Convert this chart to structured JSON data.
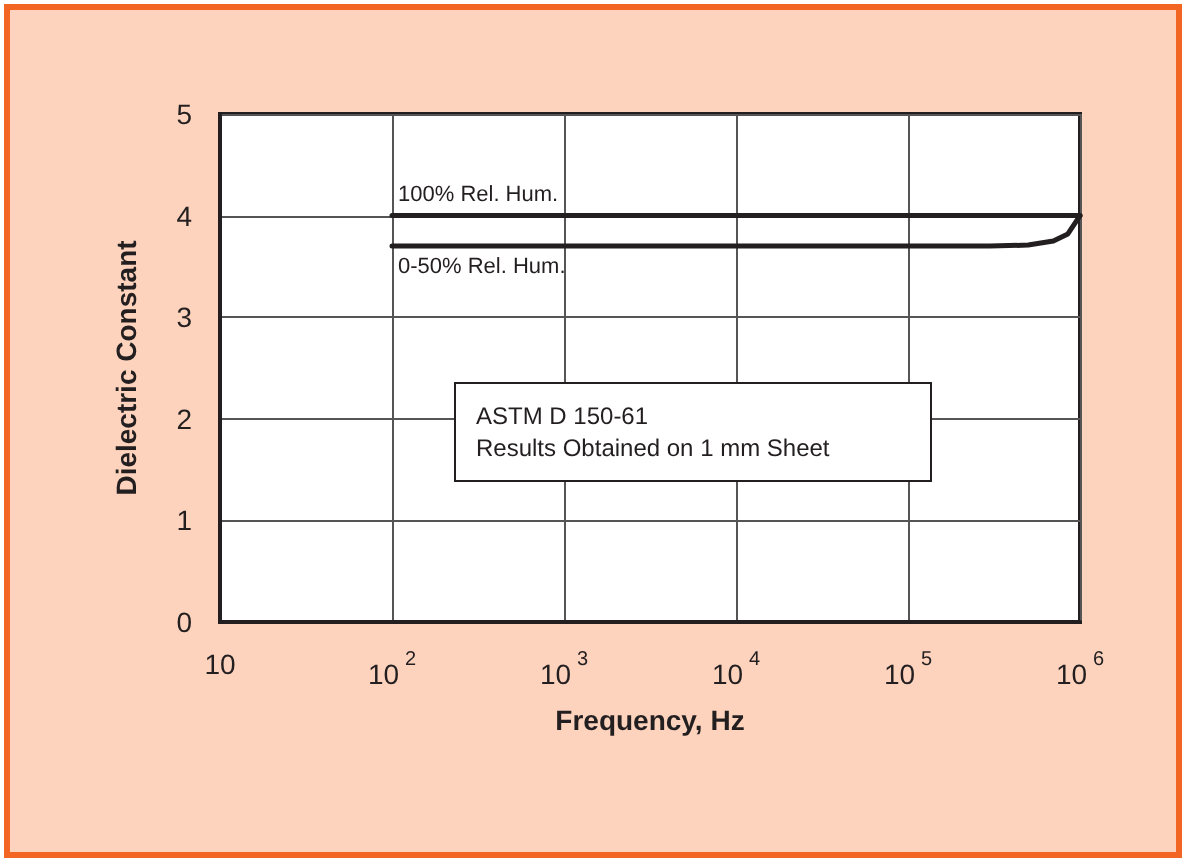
{
  "chart_data": {
    "type": "line",
    "xlabel": "Frequency, Hz",
    "ylabel": "Dielectric Constant",
    "log": "x",
    "xlim": [
      10,
      1000000
    ],
    "xticks": [
      {
        "value": 10,
        "label": "10"
      },
      {
        "value": 100,
        "label": "10$^{2}$"
      },
      {
        "value": 1000,
        "label": "10$^{3}$"
      },
      {
        "value": 10000,
        "label": "10$^{4}$"
      },
      {
        "value": 100000,
        "label": "10$^{5}$"
      },
      {
        "value": 1000000,
        "label": "10$^{6}$"
      }
    ],
    "ylim": [
      0,
      5
    ],
    "yticks": [
      0,
      1,
      2,
      3,
      4,
      5
    ],
    "grid": true,
    "legend": false,
    "marker": "none",
    "line_style": "solid",
    "series": [
      {
        "name": "100% Rel. Hum.",
        "color": "#231f20",
        "x": [
          100,
          1000,
          10000,
          100000,
          1000000
        ],
        "values": [
          4.0,
          4.0,
          4.0,
          4.0,
          4.0
        ]
      },
      {
        "name": "0-50% Rel. Hum.",
        "color": "#231f20",
        "x": [
          100,
          1000,
          10000,
          100000,
          300000,
          500000,
          700000,
          850000,
          1000000
        ],
        "values": [
          3.7,
          3.7,
          3.7,
          3.7,
          3.7,
          3.71,
          3.75,
          3.82,
          4.0
        ]
      }
    ],
    "annotations": [
      "ASTM D 150-61\nResults Obtained on 1 mm Sheet"
    ]
  }
}
